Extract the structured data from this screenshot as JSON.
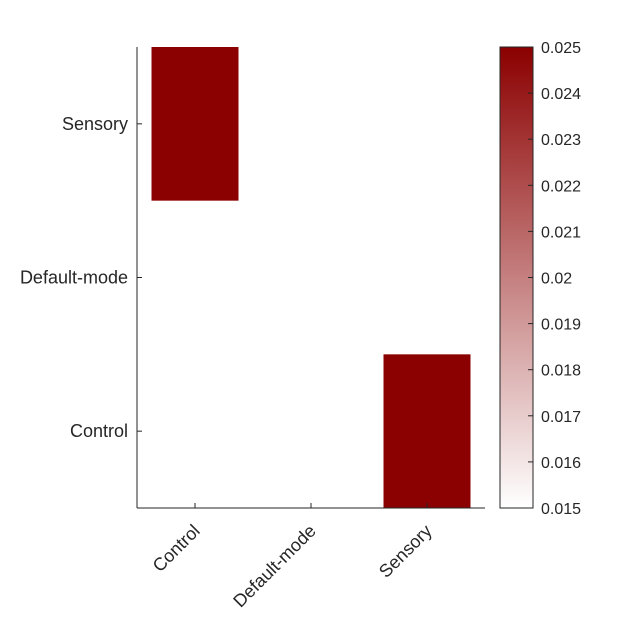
{
  "chart_data": {
    "type": "heatmap",
    "title": "",
    "xlabel": "",
    "ylabel": "",
    "x_categories": [
      "Control",
      "Default-mode",
      "Sensory"
    ],
    "y_categories": [
      "Control",
      "Default-mode",
      "Sensory"
    ],
    "cells": [
      {
        "x": "Control",
        "y": "Sensory",
        "value": 0.025
      },
      {
        "x": "Sensory",
        "y": "Control",
        "value": 0.025
      }
    ],
    "missing_color": "#ffffff",
    "colormap": {
      "low": "#ffffff",
      "high": "#8b0000"
    },
    "clim": [
      0.015,
      0.025
    ],
    "colorbar_ticks": [
      "0.015",
      "0.016",
      "0.017",
      "0.018",
      "0.019",
      "0.02",
      "0.021",
      "0.022",
      "0.023",
      "0.024",
      "0.025"
    ],
    "grid": false,
    "colorbar_placement": "right"
  }
}
